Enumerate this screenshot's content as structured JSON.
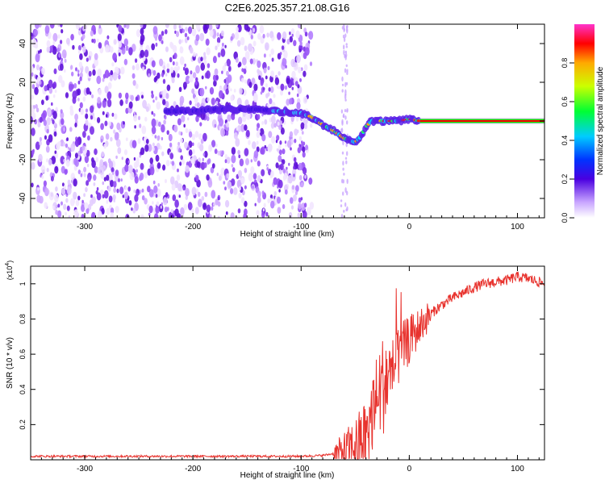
{
  "title": "C2E6.2025.357.21.08.G16",
  "chart_data": [
    {
      "type": "heatmap",
      "xlabel": "Height of straight line (km)",
      "ylabel": "Frequency (Hz)",
      "xlim": [
        -350,
        125
      ],
      "ylim": [
        -50,
        50
      ],
      "xticks": [
        -300,
        -200,
        -100,
        0,
        100
      ],
      "yticks": [
        -40,
        -20,
        0,
        20,
        40
      ],
      "noise_region_x": [
        -350,
        -90
      ],
      "gap_spike_x": -60,
      "ridge": {
        "x": [
          -220,
          -200,
          -180,
          -160,
          -140,
          -120,
          -100,
          -90,
          -80,
          -70,
          -60,
          -50,
          -45,
          -40,
          -35,
          -30,
          -20,
          -10,
          0,
          10,
          125
        ],
        "y": [
          5,
          5,
          6,
          6,
          6,
          5,
          4,
          2,
          -2,
          -5,
          -9,
          -11,
          -8,
          -3,
          0,
          0,
          0,
          0,
          1,
          0,
          0
        ]
      },
      "colorbar": {
        "label": "Normalized spectral amplitude",
        "ticks": [
          "0.0",
          "0.2",
          "0.4",
          "0.6",
          "0.8"
        ],
        "tick_values": [
          0,
          0.2,
          0.4,
          0.6,
          0.8
        ],
        "range": [
          0,
          1
        ]
      }
    },
    {
      "type": "line",
      "xlabel": "Height of straight line (km)",
      "ylabel": "SNR (10 * v/v)",
      "multiplier_base": "(x10",
      "multiplier_exp": "4",
      "multiplier_close": ")",
      "xlim": [
        -350,
        125
      ],
      "ylim": [
        0,
        1.1
      ],
      "xticks": [
        -300,
        -200,
        -100,
        0,
        100
      ],
      "yticks": [
        0.2,
        0.4,
        0.6,
        0.8,
        1.0
      ],
      "ytick_labels": [
        "0.2",
        "0.4",
        "0.6",
        "0.8",
        "1"
      ],
      "series": [
        {
          "name": "SNR",
          "color": "#e8332e",
          "x": [
            -350,
            -300,
            -250,
            -200,
            -150,
            -100,
            -80,
            -65,
            -50,
            -40,
            -35,
            -30,
            -25,
            -20,
            -15,
            -10,
            -5,
            0,
            10,
            20,
            30,
            40,
            50,
            60,
            70,
            80,
            90,
            100,
            110,
            125
          ],
          "y": [
            0.02,
            0.02,
            0.02,
            0.02,
            0.02,
            0.02,
            0.025,
            0.04,
            0.08,
            0.15,
            0.25,
            0.35,
            0.42,
            0.48,
            0.52,
            0.58,
            0.64,
            0.68,
            0.76,
            0.83,
            0.88,
            0.92,
            0.95,
            0.98,
            1.0,
            1.01,
            1.02,
            1.04,
            1.03,
            1.0
          ]
        }
      ]
    }
  ]
}
